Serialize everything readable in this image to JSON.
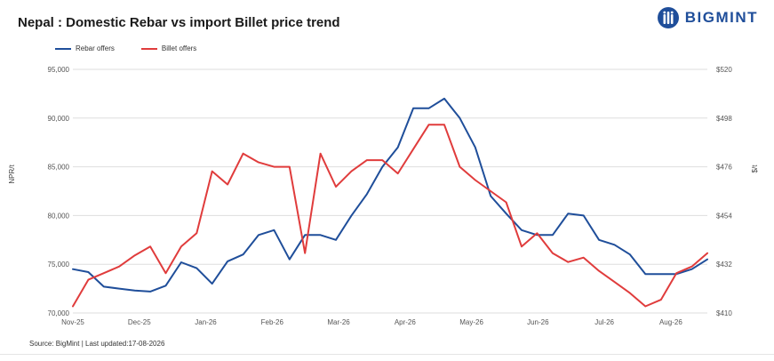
{
  "header": {
    "title": "Nepal : Domestic Rebar vs import Billet price trend",
    "brand": "BIGMINT"
  },
  "footer": {
    "source": "Source: BigMint | Last updated:17-08-2026"
  },
  "colors": {
    "rebar": "#1f4e9a",
    "billet": "#e03c3c",
    "grid": "#dedede",
    "axis_text": "#555555"
  },
  "chart_data": {
    "type": "line",
    "title": "Nepal : Domestic Rebar vs import Billet price trend",
    "ylabel": "NPR/t",
    "y2label": "$/t",
    "ylim": [
      70000,
      95000
    ],
    "y2lim": [
      410,
      520
    ],
    "yticks": [
      "70,000",
      "75,000",
      "80,000",
      "85,000",
      "90,000",
      "95,000"
    ],
    "y2ticks": [
      "$410",
      "$432",
      "$454",
      "$476",
      "$498",
      "$520"
    ],
    "xticks": [
      "Nov-25",
      "Dec-25",
      "Jan-26",
      "Feb-26",
      "Mar-26",
      "Apr-26",
      "May-26",
      "Jun-26",
      "Jul-26",
      "Aug-26"
    ],
    "grid": true,
    "legend_position": "top-left",
    "series": [
      {
        "name": "Rebar offers",
        "axis": "left",
        "values": [
          74500,
          74200,
          72700,
          72500,
          72300,
          72200,
          72800,
          75200,
          74600,
          73000,
          75300,
          76000,
          78000,
          78500,
          75500,
          78000,
          78000,
          77500,
          80000,
          82200,
          85000,
          87000,
          91000,
          91000,
          92000,
          90000,
          87000,
          82000,
          80200,
          78500,
          78000,
          78000,
          80200,
          80000,
          77500,
          77000,
          76000,
          74000,
          74000,
          74000,
          74500,
          75500
        ]
      },
      {
        "name": "Billet offers",
        "axis": "right",
        "values": [
          413,
          425,
          428,
          431,
          436,
          440,
          428,
          440,
          446,
          474,
          468,
          482,
          478,
          476,
          476,
          437,
          482,
          467,
          474,
          479,
          479,
          473,
          484,
          495,
          495,
          476,
          470,
          465,
          460,
          440,
          446,
          437,
          433,
          435,
          429,
          424,
          419,
          413,
          416,
          428,
          431,
          437
        ]
      }
    ]
  }
}
